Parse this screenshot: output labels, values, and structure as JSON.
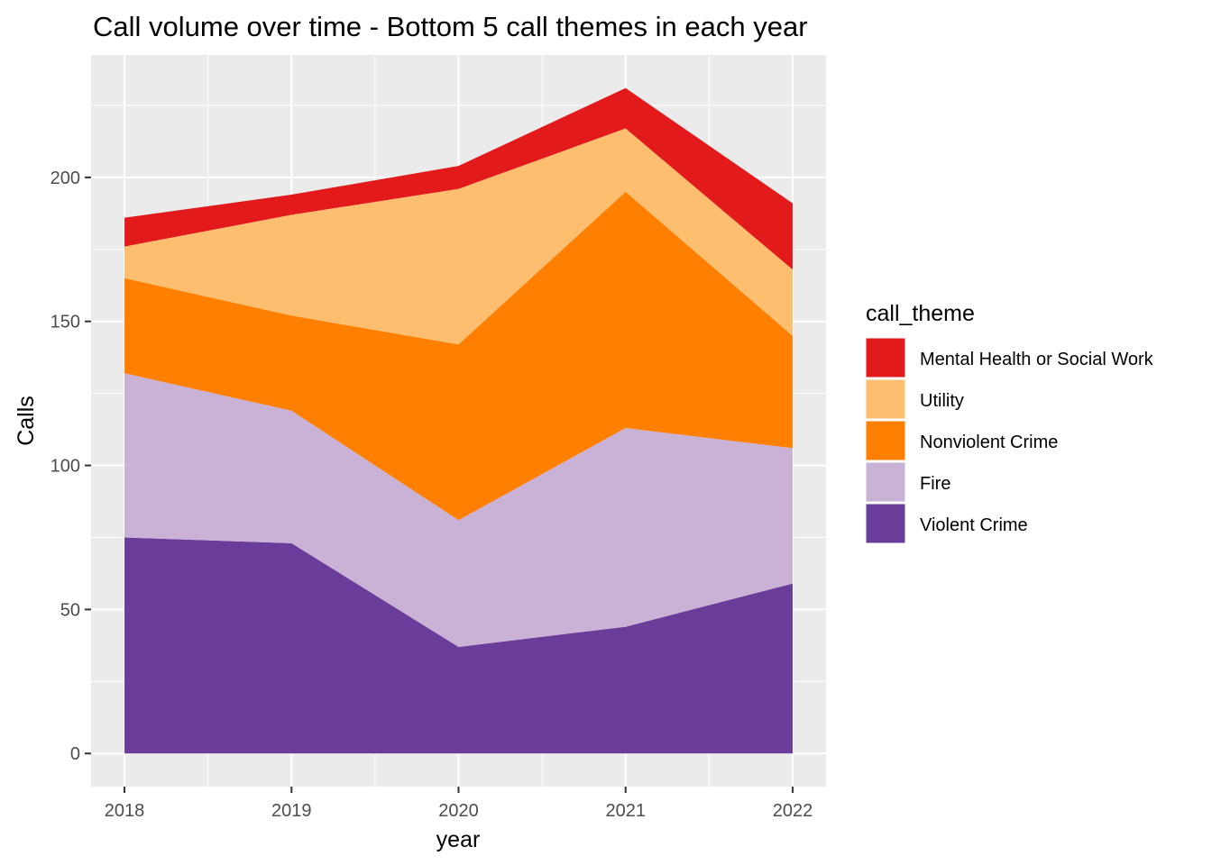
{
  "chart_data": {
    "type": "area",
    "stacked": true,
    "title": "Call volume over time - Bottom 5 call themes in each year",
    "xlabel": "year",
    "ylabel": "Calls",
    "x": [
      2018,
      2019,
      2020,
      2021,
      2022
    ],
    "xlim": [
      2017.8,
      2022.2
    ],
    "ylim": [
      -11.5,
      242.5
    ],
    "y_ticks": [
      0,
      50,
      100,
      150,
      200
    ],
    "grid": true,
    "legend_title": "call_theme",
    "legend_position": "right",
    "series": [
      {
        "name": "Violent Crime",
        "color": "#6a3d9a",
        "values": [
          75,
          73,
          37,
          44,
          59
        ]
      },
      {
        "name": "Fire",
        "color": "#cab2d6",
        "values": [
          57,
          46,
          44,
          69,
          47
        ]
      },
      {
        "name": "Nonviolent Crime",
        "color": "#ff7f00",
        "values": [
          33,
          33,
          61,
          82,
          39
        ]
      },
      {
        "name": "Utility",
        "color": "#fdbf6f",
        "values": [
          11,
          35,
          54,
          22,
          23
        ]
      },
      {
        "name": "Mental Health or Social Work",
        "color": "#e31a1c",
        "values": [
          10,
          7,
          8,
          14,
          23
        ]
      }
    ],
    "legend_order": [
      "Mental Health or Social Work",
      "Utility",
      "Nonviolent Crime",
      "Fire",
      "Violent Crime"
    ],
    "panel_background": "#ebebeb",
    "grid_color": "#ffffff"
  }
}
